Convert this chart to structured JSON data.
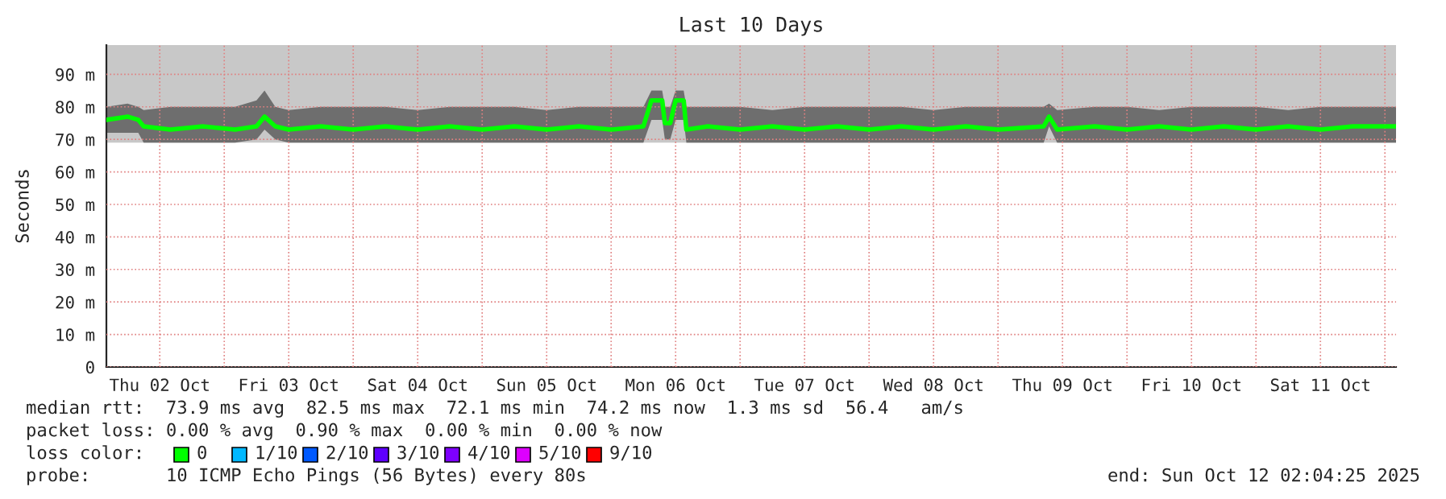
{
  "chart_data": {
    "type": "line",
    "title": "Last 10 Days",
    "ylabel": "Seconds",
    "xlim": [
      "2025-10-02T02:04",
      "2025-10-12T02:04"
    ],
    "ylim": [
      0,
      99
    ],
    "xticks": [
      {
        "value": "2025-10-02T12:00",
        "label": "Thu 02 Oct"
      },
      {
        "value": "2025-10-03T00:00",
        "label": null
      },
      {
        "value": "2025-10-03T12:00",
        "label": "Fri 03 Oct"
      },
      {
        "value": "2025-10-04T00:00",
        "label": null
      },
      {
        "value": "2025-10-04T12:00",
        "label": "Sat 04 Oct"
      },
      {
        "value": "2025-10-05T00:00",
        "label": null
      },
      {
        "value": "2025-10-05T12:00",
        "label": "Sun 05 Oct"
      },
      {
        "value": "2025-10-06T00:00",
        "label": null
      },
      {
        "value": "2025-10-06T12:00",
        "label": "Mon 06 Oct"
      },
      {
        "value": "2025-10-07T00:00",
        "label": null
      },
      {
        "value": "2025-10-07T12:00",
        "label": "Tue 07 Oct"
      },
      {
        "value": "2025-10-08T00:00",
        "label": null
      },
      {
        "value": "2025-10-08T12:00",
        "label": "Wed 08 Oct"
      },
      {
        "value": "2025-10-09T00:00",
        "label": null
      },
      {
        "value": "2025-10-09T12:00",
        "label": "Thu 09 Oct"
      },
      {
        "value": "2025-10-10T00:00",
        "label": null
      },
      {
        "value": "2025-10-10T12:00",
        "label": "Fri 10 Oct"
      },
      {
        "value": "2025-10-11T00:00",
        "label": null
      },
      {
        "value": "2025-10-11T12:00",
        "label": "Sat 11 Oct"
      },
      {
        "value": "2025-10-12T00:00",
        "label": null
      }
    ],
    "yticks": [
      0,
      {
        "value": 10,
        "label": "10 m"
      },
      {
        "value": 20,
        "label": "20 m"
      },
      {
        "value": 30,
        "label": "30 m"
      },
      {
        "value": 40,
        "label": "40 m"
      },
      {
        "value": 50,
        "label": "50 m"
      },
      {
        "value": 60,
        "label": "60 m"
      },
      {
        "value": 70,
        "label": "70 m"
      },
      {
        "value": 80,
        "label": "80 m"
      },
      {
        "value": 90,
        "label": "90 m"
      }
    ],
    "grid": true,
    "bands": [
      {
        "axis": "y",
        "from": 69,
        "to": 99,
        "color": "#c8c8c8"
      }
    ],
    "series": [
      {
        "color": "#00ff00",
        "x": [
          "2025-10-02T02:04",
          "2025-10-02T06:00",
          "2025-10-02T08:00",
          "2025-10-02T09:00",
          "2025-10-02T14:00",
          "2025-10-02T20:00",
          "2025-10-03T02:00",
          "2025-10-03T06:00",
          "2025-10-03T07:30",
          "2025-10-03T09:30",
          "2025-10-03T12:00",
          "2025-10-03T18:00",
          "2025-10-04T00:00",
          "2025-10-04T06:00",
          "2025-10-04T12:00",
          "2025-10-04T18:00",
          "2025-10-05T00:00",
          "2025-10-05T06:00",
          "2025-10-05T12:00",
          "2025-10-05T18:00",
          "2025-10-06T00:00",
          "2025-10-06T06:00",
          "2025-10-06T07:30",
          "2025-10-06T09:30",
          "2025-10-06T10:00",
          "2025-10-06T11:00",
          "2025-10-06T12:00",
          "2025-10-06T13:30",
          "2025-10-06T14:00",
          "2025-10-06T18:00",
          "2025-10-07T00:00",
          "2025-10-07T06:00",
          "2025-10-07T12:00",
          "2025-10-07T18:00",
          "2025-10-08T00:00",
          "2025-10-08T06:00",
          "2025-10-08T12:00",
          "2025-10-08T18:00",
          "2025-10-09T00:00",
          "2025-10-09T08:30",
          "2025-10-09T09:30",
          "2025-10-09T11:00",
          "2025-10-09T18:00",
          "2025-10-10T00:00",
          "2025-10-10T06:00",
          "2025-10-10T12:00",
          "2025-10-10T18:00",
          "2025-10-11T00:00",
          "2025-10-11T06:00",
          "2025-10-11T12:00",
          "2025-10-11T18:00",
          "2025-10-12T02:04"
        ],
        "values": [
          76,
          77,
          76,
          74,
          73,
          74,
          73,
          74,
          77,
          74,
          73,
          74,
          73,
          74,
          73,
          74,
          73,
          74,
          73,
          74,
          73,
          74,
          82,
          82,
          75,
          75,
          82,
          82,
          73,
          74,
          73,
          74,
          73,
          74,
          73,
          74,
          73,
          74,
          73,
          74,
          77,
          73,
          74,
          73,
          74,
          73,
          74,
          73,
          74,
          73,
          74,
          74
        ],
        "lower": [
          72,
          72,
          72,
          69,
          69,
          69,
          69,
          70,
          73,
          70,
          69,
          69,
          69,
          69,
          69,
          69,
          69,
          69,
          69,
          69,
          69,
          69,
          76,
          76,
          70,
          70,
          76,
          76,
          69,
          69,
          69,
          69,
          69,
          69,
          69,
          69,
          69,
          69,
          69,
          69,
          74,
          69,
          69,
          69,
          69,
          69,
          69,
          69,
          69,
          69,
          69,
          69
        ],
        "upper": [
          80,
          81,
          80,
          79,
          80,
          80,
          80,
          82,
          85,
          80,
          79,
          80,
          80,
          80,
          79,
          80,
          80,
          80,
          79,
          80,
          80,
          80,
          85,
          85,
          80,
          80,
          85,
          85,
          80,
          80,
          80,
          79,
          80,
          80,
          80,
          80,
          79,
          80,
          80,
          80,
          81,
          79,
          80,
          80,
          79,
          80,
          80,
          80,
          79,
          80,
          80,
          80
        ]
      }
    ],
    "annotations": [
      "median rtt:  73.9 ms avg  82.5 ms max  72.1 ms min  74.2 ms now  1.3 ms sd  56.4   am/s",
      "packet loss: 0.00 % avg  0.90 % max  0.00 % min  0.00 % now",
      "loss color:",
      "0",
      "1/10",
      "2/10",
      "3/10",
      "4/10",
      "5/10",
      "9/10",
      "probe:       10 ICMP Echo Pings (56 Bytes) every 80s",
      "end: Sun Oct 12 02:04:25 2025"
    ]
  }
}
